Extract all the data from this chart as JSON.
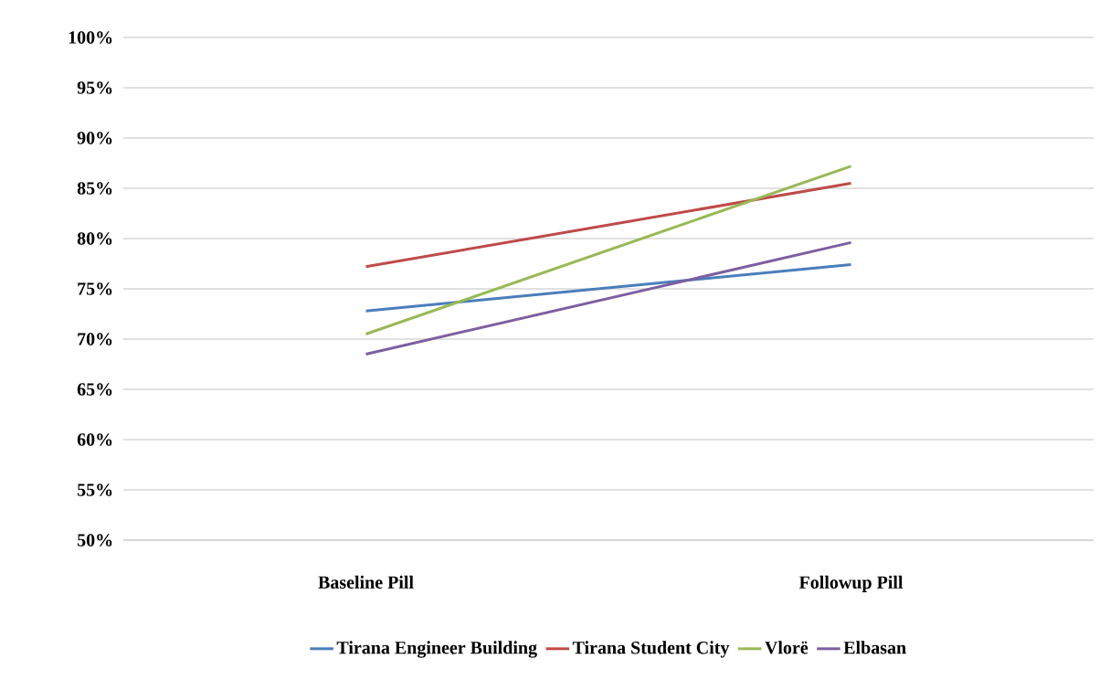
{
  "chart_data": {
    "type": "line",
    "categories": [
      "Baseline Pill",
      "Followup Pill"
    ],
    "series": [
      {
        "name": "Tirana Engineer Building",
        "color": "#4a7ebb",
        "values": [
          72.8,
          77.4
        ]
      },
      {
        "name": "Tirana Student City",
        "color": "#be4b48",
        "values": [
          77.2,
          85.5
        ]
      },
      {
        "name": "Vlorë",
        "color": "#98b954",
        "values": [
          70.5,
          87.2
        ]
      },
      {
        "name": "Elbasan",
        "color": "#7d5fa0",
        "values": [
          68.5,
          79.6
        ]
      }
    ],
    "ylim": [
      50,
      100
    ],
    "yticks": [
      {
        "value": 50,
        "label": "50%"
      },
      {
        "value": 55,
        "label": "55%"
      },
      {
        "value": 60,
        "label": "60%"
      },
      {
        "value": 65,
        "label": "65%"
      },
      {
        "value": 70,
        "label": "70%"
      },
      {
        "value": 75,
        "label": "75%"
      },
      {
        "value": 80,
        "label": "80%"
      },
      {
        "value": 85,
        "label": "85%"
      },
      {
        "value": 90,
        "label": "90%"
      },
      {
        "value": 95,
        "label": "95%"
      },
      {
        "value": 100,
        "label": "100%"
      }
    ],
    "grid": "y",
    "legend": "bottom",
    "marker": "none",
    "line_style": "solid"
  }
}
